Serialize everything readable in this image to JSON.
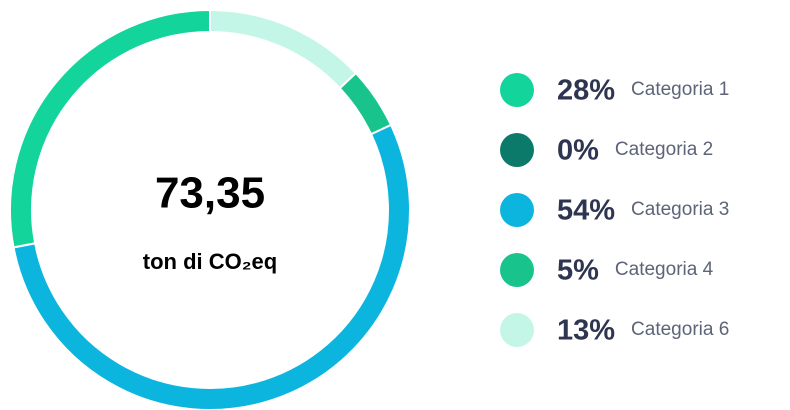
{
  "chart_data": {
    "type": "donut",
    "center_label": "73,35",
    "center_sublabel": "ton di CO₂eq",
    "categories": [
      "Categoria 1",
      "Categoria 2",
      "Categoria 3",
      "Categoria 4",
      "Categoria 6"
    ],
    "values": [
      28,
      0,
      54,
      5,
      13
    ],
    "value_labels": [
      "28%",
      "0%",
      "54%",
      "5%",
      "13%"
    ],
    "colors": [
      "#13d49a",
      "#0b7a6a",
      "#0bb5de",
      "#19c48c",
      "#c3f6e6"
    ],
    "direction": "counterclockwise"
  }
}
